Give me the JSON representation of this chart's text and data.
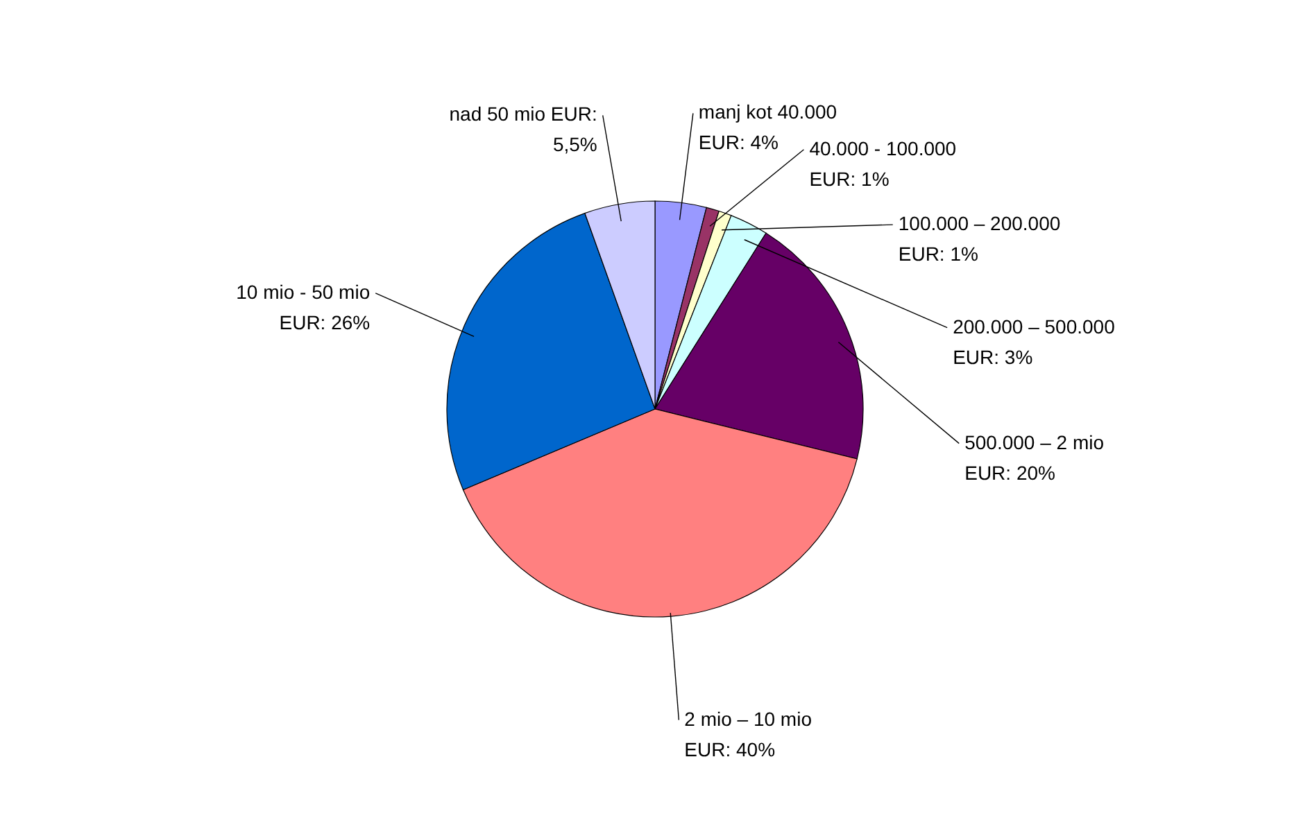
{
  "chart_data": {
    "type": "pie",
    "categories": [
      "manj kot 40.000 EUR: 4%",
      "40.000 - 100.000 EUR: 1%",
      "100.000 – 200.000 EUR: 1%",
      "200.000 – 500.000 EUR: 3%",
      "500.000 – 2 mio EUR: 20%",
      "2 mio – 10 mio EUR: 40%",
      "10 mio  - 50 mio EUR: 26%",
      "nad 50 mio EUR: 5,5%"
    ],
    "values": [
      4,
      1,
      1,
      3,
      20,
      40,
      26,
      5.5
    ],
    "colors": [
      "#9999ff",
      "#993366",
      "#ffffcc",
      "#ccffff",
      "#660066",
      "#ff8080",
      "#0066cc",
      "#ccccff"
    ]
  }
}
